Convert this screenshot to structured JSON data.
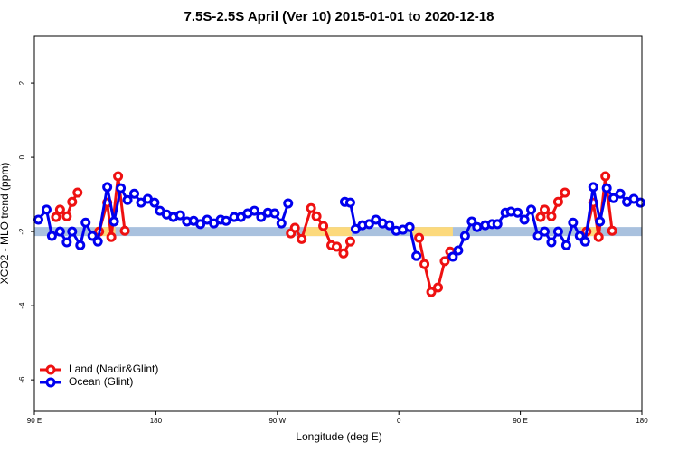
{
  "chart_data": {
    "type": "line",
    "title": "7.5S-2.5S April (Ver 10)   2015-01-01 to 2020-12-18",
    "xlabel": "Longitude (deg E)",
    "ylabel": "XCO2 - MLO trend (ppm)",
    "xlim": [
      90,
      540
    ],
    "ylim": [
      -6.85,
      3.27
    ],
    "xticks": [
      {
        "value": 90,
        "label": "90 E"
      },
      {
        "value": 180,
        "label": "180"
      },
      {
        "value": 270,
        "label": "90 W"
      },
      {
        "value": 360,
        "label": "0"
      },
      {
        "value": 450,
        "label": "90 E"
      },
      {
        "value": 540,
        "label": "180"
      }
    ],
    "yticks": [
      -6,
      -4,
      -2,
      0,
      2
    ],
    "legend": "bottomleft",
    "reference_band": {
      "value": -2,
      "color": "#a9c1de",
      "segments": [
        {
          "x": [
            135,
            150
          ],
          "color": "#fcd97c"
        },
        {
          "x": [
            290,
            325
          ],
          "color": "#fcd97c"
        },
        {
          "x": [
            370,
            400
          ],
          "color": "#fcd97c"
        },
        {
          "x": [
            495,
            508
          ],
          "color": "#fcd97c"
        }
      ]
    },
    "series": [
      {
        "name": "Land (Nadir&Glint)",
        "color": "#ee1111",
        "x": [
          106,
          109,
          114,
          118,
          122,
          null,
          138,
          144,
          147,
          152,
          157,
          null,
          280,
          283,
          288,
          295,
          299,
          304,
          310,
          314,
          319,
          324,
          null,
          375,
          379,
          384,
          389,
          394,
          398,
          null,
          465,
          468,
          473,
          478,
          483,
          null,
          499,
          504,
          508,
          513,
          518
        ],
        "values": [
          -1.61,
          -1.41,
          -1.59,
          -1.2,
          -0.95,
          null,
          -2.0,
          -1.22,
          -2.15,
          -0.51,
          -1.98,
          null,
          -2.05,
          -1.9,
          -2.2,
          -1.37,
          -1.59,
          -1.85,
          -2.37,
          -2.41,
          -2.59,
          -2.27,
          null,
          -2.17,
          -2.88,
          -3.63,
          -3.51,
          -2.8,
          -2.54,
          null,
          -1.61,
          -1.41,
          -1.59,
          -1.2,
          -0.95,
          null,
          -2.0,
          -1.22,
          -2.15,
          -0.51,
          -1.98
        ]
      },
      {
        "name": "Ocean (Glint)",
        "color": "#0000ee",
        "x": [
          93,
          99,
          103,
          109,
          114,
          118,
          124,
          128,
          133,
          137,
          144,
          149,
          154,
          159,
          164,
          169,
          174,
          179,
          183,
          188,
          193,
          198,
          203,
          208,
          213,
          218,
          223,
          228,
          232,
          238,
          243,
          248,
          253,
          258,
          263,
          268,
          273,
          278,
          null,
          320,
          324,
          328,
          333,
          338,
          343,
          348,
          353,
          358,
          363,
          368,
          373,
          null,
          400,
          404,
          409,
          414,
          418,
          424,
          429,
          433,
          439,
          443,
          448,
          453,
          458,
          463,
          468,
          473,
          478,
          484,
          489,
          494,
          498,
          504,
          509,
          514,
          519,
          524,
          529,
          534,
          539
        ],
        "values": [
          -1.68,
          -1.41,
          -2.12,
          -2.0,
          -2.29,
          -2.0,
          -2.37,
          -1.76,
          -2.12,
          -2.27,
          -0.8,
          -1.73,
          -0.83,
          -1.15,
          -0.98,
          -1.22,
          -1.12,
          -1.22,
          -1.44,
          -1.54,
          -1.61,
          -1.56,
          -1.73,
          -1.71,
          -1.8,
          -1.68,
          -1.78,
          -1.68,
          -1.71,
          -1.61,
          -1.61,
          -1.51,
          -1.44,
          -1.61,
          -1.49,
          -1.51,
          -1.78,
          -1.24,
          null,
          -1.2,
          -1.22,
          -1.93,
          -1.83,
          -1.8,
          -1.68,
          -1.78,
          -1.83,
          -1.98,
          -1.95,
          -1.88,
          -2.66,
          null,
          -2.68,
          -2.51,
          -2.12,
          -1.73,
          -1.88,
          -1.83,
          -1.8,
          -1.8,
          -1.49,
          -1.46,
          -1.49,
          -1.68,
          -1.41,
          -2.12,
          -2.0,
          -2.29,
          -2.0,
          -2.37,
          -1.76,
          -2.12,
          -2.27,
          -0.8,
          -1.73,
          -0.83,
          -1.1,
          -0.98,
          -1.2,
          -1.12,
          -1.22
        ]
      }
    ]
  }
}
